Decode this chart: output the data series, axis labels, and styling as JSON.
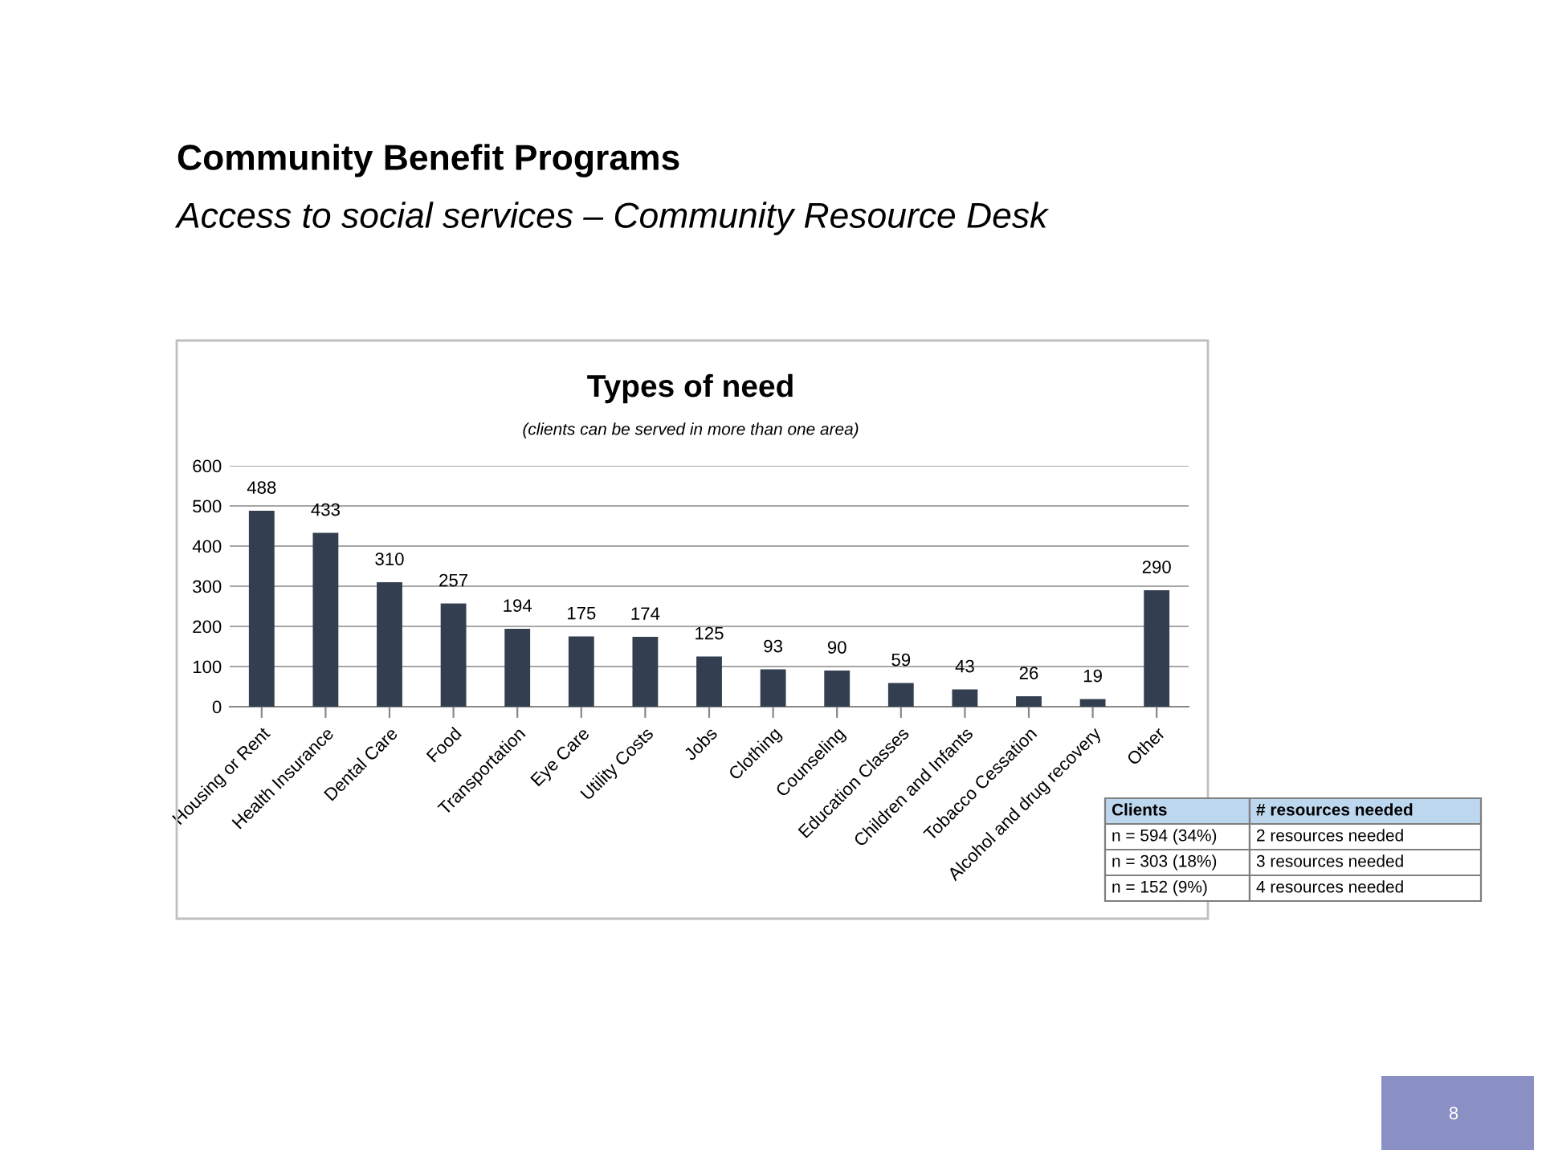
{
  "chart_data": {
    "type": "bar",
    "title": "Types of need",
    "subtitle": "(clients can be served in more than one area)",
    "categories": [
      "Housing or Rent",
      "Health Insurance",
      "Dental Care",
      "Food",
      "Transportation",
      "Eye Care",
      "Utility Costs",
      "Jobs",
      "Clothing",
      "Counseling",
      "Education Classes",
      "Children and Infants",
      "Tobacco Cessation",
      "Alcohol and drug recovery",
      "Other"
    ],
    "values": [
      488,
      433,
      310,
      257,
      194,
      175,
      174,
      125,
      93,
      90,
      59,
      43,
      26,
      19,
      290
    ],
    "color": "#333f50",
    "data_labels": true,
    "ylim": [
      0,
      600
    ],
    "yticks": [
      0,
      100,
      200,
      300,
      400,
      500,
      600
    ],
    "grid": "y",
    "annotations": [
      "Community Benefit Programs",
      "Access to social services – Community Resource Desk",
      "Clients",
      "# resources needed",
      "n = 594 (34%)",
      "2 resources needed",
      "n = 303 (18%)",
      "3 resources needed",
      "n = 152 (9%)",
      "4 resources needed",
      "8"
    ]
  }
}
